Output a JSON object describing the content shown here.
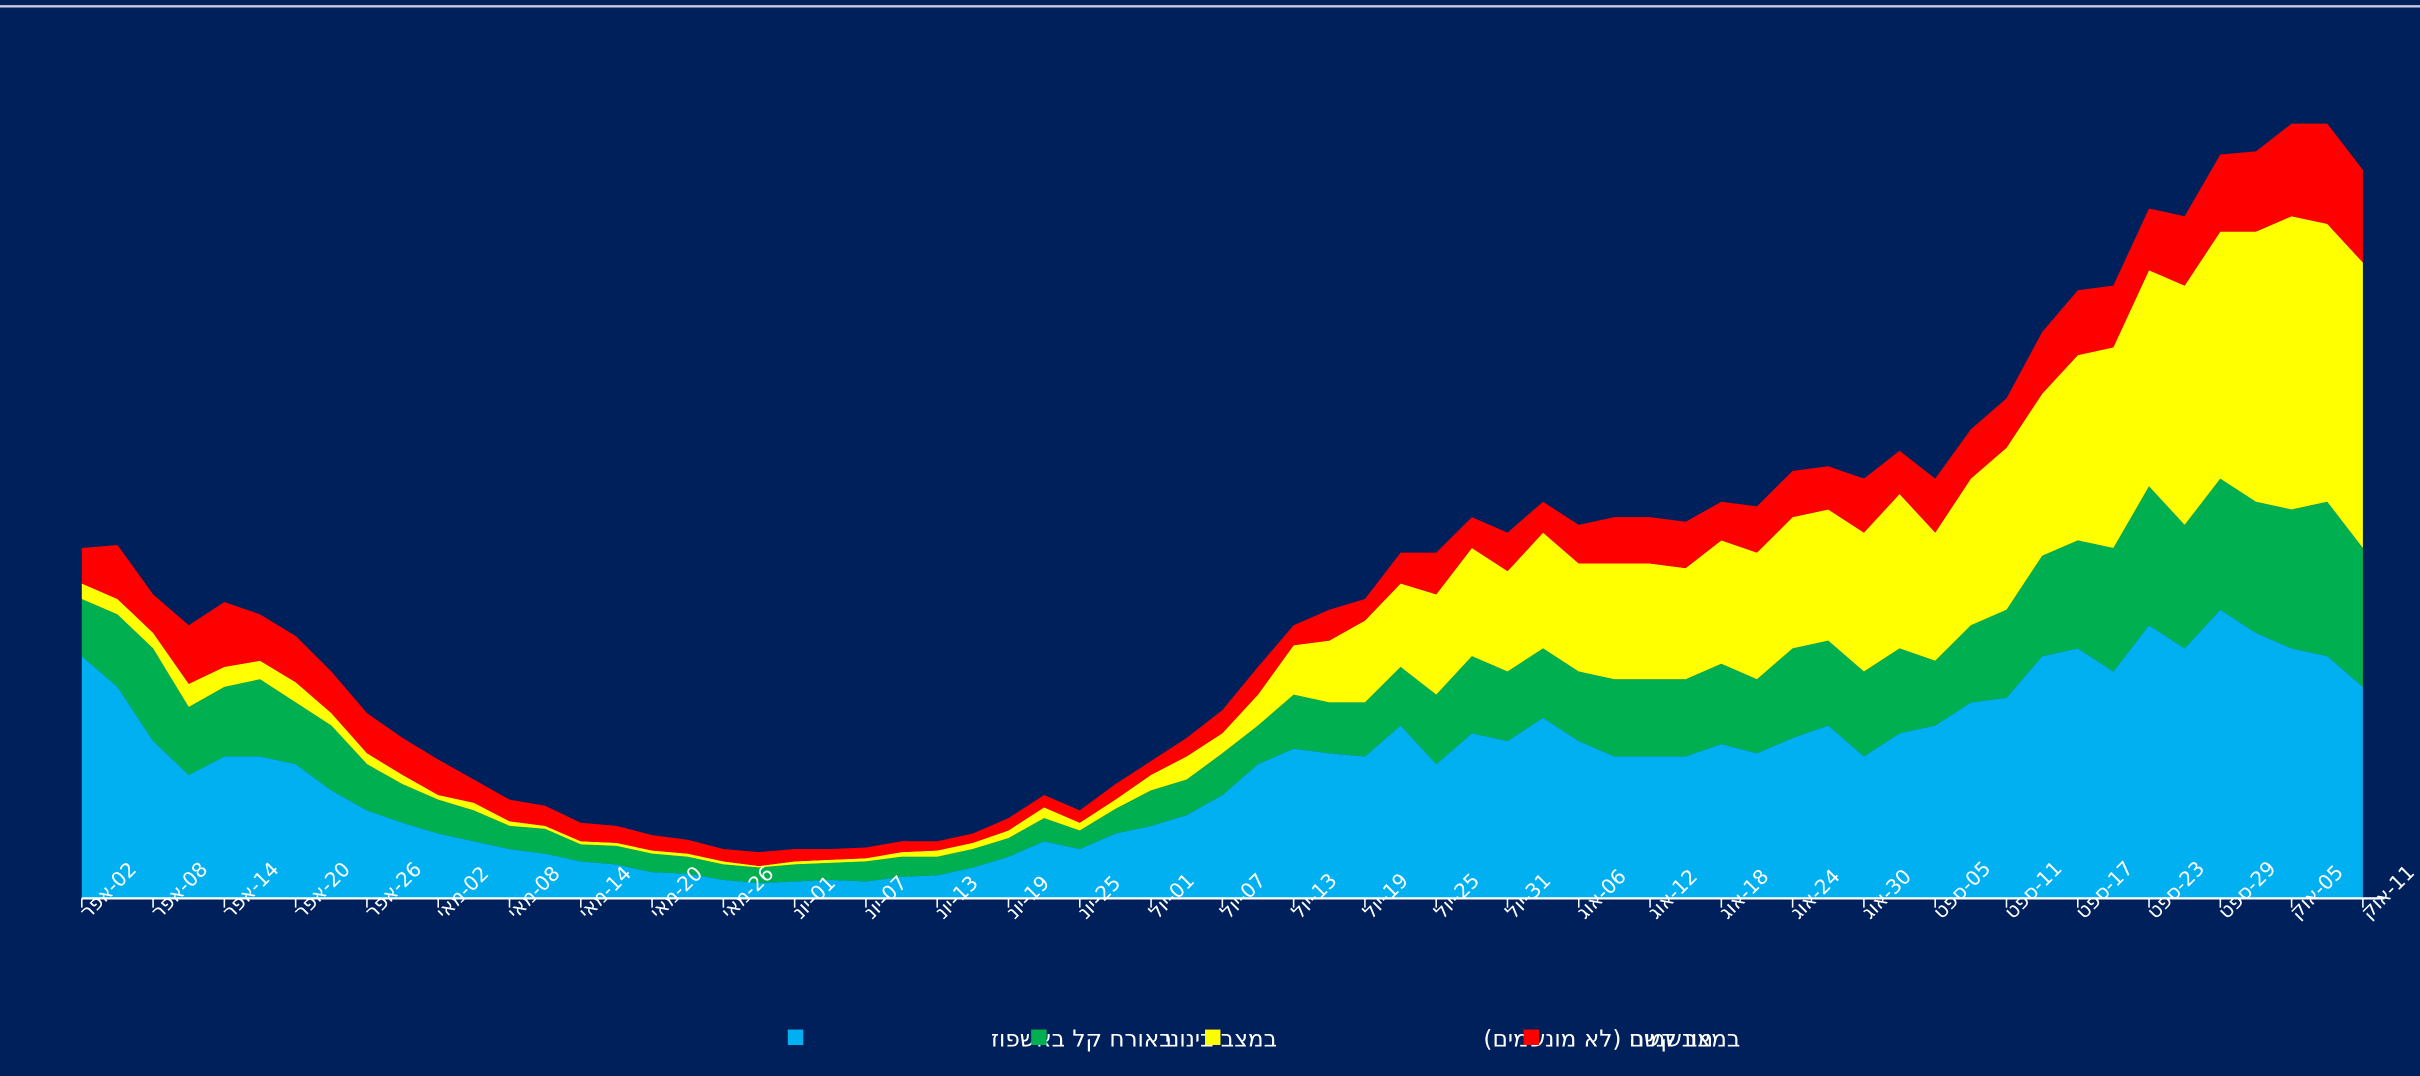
{
  "chart_data": {
    "type": "stacked_area",
    "categories": [
      "02-אפר",
      null,
      "08-אפר",
      null,
      "14-אפר",
      null,
      "20-אפר",
      null,
      "26-אפר",
      null,
      "02-מאי",
      null,
      "08-מאי",
      null,
      "14-מאי",
      null,
      "20-מאי",
      null,
      "26-מאי",
      null,
      "01-יונ",
      null,
      "07-יונ",
      null,
      "13-יונ",
      null,
      "19-יונ",
      null,
      "25-יונ",
      null,
      "01-יול",
      null,
      "07-יול",
      null,
      "13-יול",
      null,
      "19-יול",
      null,
      "25-יול",
      null,
      "31-יול",
      null,
      "06-אוג",
      null,
      "12-אוג",
      null,
      "18-אוג",
      null,
      "24-אוג",
      null,
      "30-אוג",
      null,
      "05-ספט",
      null,
      "11-ספט",
      null,
      "17-ספט",
      null,
      "23-ספט",
      null,
      "29-ספט",
      null,
      "05-אוק",
      null,
      "11-אוק"
    ],
    "series": [
      {
        "name": "באורח קל באשפוז",
        "color": "#00b0f0",
        "values": [
          157,
          137,
          102,
          80,
          92,
          92,
          87,
          70,
          57,
          49,
          42,
          37,
          32,
          29,
          24,
          22,
          17,
          16,
          12,
          10,
          11,
          12,
          11,
          14,
          15,
          20,
          27,
          37,
          32,
          42,
          47,
          54,
          67,
          87,
          97,
          94,
          92,
          112,
          87,
          107,
          102,
          117,
          102,
          92,
          92,
          92,
          100,
          94,
          104,
          112,
          92,
          107,
          112,
          127,
          130,
          157,
          162,
          147,
          177,
          162,
          187,
          172,
          162,
          157,
          137
        ]
      },
      {
        "name": "במצב בינוני",
        "color": "#00b050",
        "values": [
          37,
          47,
          60,
          44,
          45,
          50,
          40,
          42,
          30,
          25,
          22,
          20,
          15,
          16,
          11,
          12,
          12,
          11,
          10,
          10,
          11,
          11,
          13,
          13,
          12,
          12,
          12,
          15,
          12,
          16,
          23,
          23,
          27,
          25,
          35,
          33,
          35,
          38,
          45,
          50,
          45,
          45,
          45,
          50,
          50,
          50,
          52,
          48,
          58,
          55,
          55,
          55,
          42,
          50,
          57,
          65,
          70,
          80,
          90,
          80,
          85,
          85,
          90,
          100,
          90
        ]
      },
      {
        "name": "במצב קשה (לא מונשמים)",
        "color": "#ffff00",
        "values": [
          10,
          10,
          10,
          15,
          13,
          12,
          13,
          8,
          7,
          6,
          3,
          5,
          3,
          2,
          2,
          2,
          2,
          2,
          2,
          1,
          2,
          2,
          2,
          3,
          4,
          4,
          5,
          7,
          5,
          6,
          10,
          15,
          13,
          20,
          32,
          40,
          53,
          54,
          65,
          70,
          65,
          75,
          70,
          75,
          75,
          72,
          80,
          82,
          85,
          85,
          90,
          100,
          83,
          95,
          105,
          105,
          120,
          130,
          140,
          155,
          160,
          175,
          190,
          180,
          185
        ]
      },
      {
        "name": "מונשמים",
        "color": "#ff0000",
        "values": [
          23,
          35,
          25,
          38,
          42,
          30,
          30,
          27,
          26,
          24,
          23,
          15,
          14,
          13,
          12,
          11,
          10,
          9,
          8,
          9,
          8,
          7,
          7,
          7,
          6,
          6,
          8,
          8,
          8,
          10,
          9,
          12,
          15,
          18,
          13,
          20,
          14,
          20,
          27,
          20,
          25,
          20,
          25,
          30,
          30,
          30,
          25,
          30,
          30,
          28,
          35,
          28,
          35,
          32,
          32,
          40,
          42,
          40,
          40,
          45,
          50,
          52,
          60,
          65,
          60
        ]
      }
    ],
    "ylim": [
      0,
      530
    ],
    "background": "#00205b",
    "legend": "bottom"
  }
}
